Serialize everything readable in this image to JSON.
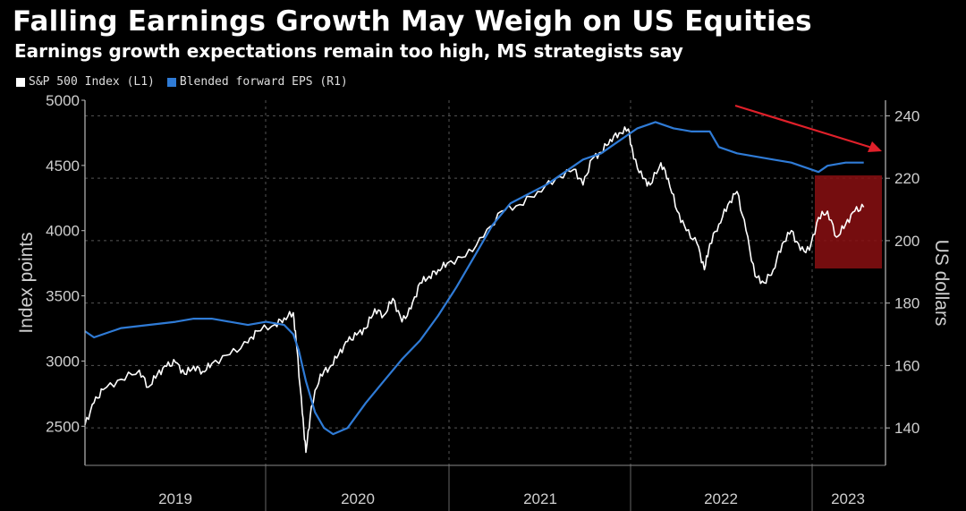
{
  "header": {
    "title": "Falling Earnings Growth May Weigh on US Equities",
    "subtitle": "Earnings growth expectations remain too high, MS strategists say"
  },
  "legend": [
    {
      "label": "S&P 500 Index (L1)",
      "color": "#ffffff"
    },
    {
      "label": "Blended forward EPS (R1)",
      "color": "#2f7bd6"
    }
  ],
  "chart_data": {
    "type": "line",
    "xlabel": "",
    "ylabel_left": "Index points",
    "ylabel_right": "US dollars",
    "x_ticks": [
      "2019",
      "2020",
      "2021",
      "2022",
      "2023"
    ],
    "y_left_ticks": [
      "2500",
      "3000",
      "3500",
      "4000",
      "4500",
      "5000"
    ],
    "y_right_ticks": [
      "140",
      "160",
      "180",
      "200",
      "220",
      "240"
    ],
    "ylim_left": [
      2200,
      5000
    ],
    "ylim_right": [
      128,
      245
    ],
    "xlim": [
      2019.0,
      2023.42
    ],
    "grid": true,
    "legend_position": "top-left",
    "series": [
      {
        "name": "S&P 500 Index (L1)",
        "axis": "left",
        "color": "#ffffff",
        "x": [
          2019.0,
          2019.05,
          2019.1,
          2019.2,
          2019.3,
          2019.35,
          2019.4,
          2019.45,
          2019.5,
          2019.55,
          2019.6,
          2019.65,
          2019.7,
          2019.8,
          2019.9,
          2019.95,
          2020.05,
          2020.1,
          2020.15,
          2020.17,
          2020.2,
          2020.22,
          2020.25,
          2020.3,
          2020.35,
          2020.4,
          2020.45,
          2020.5,
          2020.55,
          2020.6,
          2020.65,
          2020.7,
          2020.75,
          2020.8,
          2020.85,
          2020.9,
          2020.95,
          2021.0,
          2021.1,
          2021.2,
          2021.3,
          2021.4,
          2021.5,
          2021.6,
          2021.7,
          2021.75,
          2021.8,
          2021.85,
          2021.9,
          2021.95,
          2022.0,
          2022.03,
          2022.08,
          2022.12,
          2022.18,
          2022.22,
          2022.27,
          2022.32,
          2022.38,
          2022.42,
          2022.45,
          2022.5,
          2022.55,
          2022.6,
          2022.65,
          2022.7,
          2022.75,
          2022.8,
          2022.85,
          2022.9,
          2022.95,
          2023.0,
          2023.05,
          2023.1,
          2023.15,
          2023.2,
          2023.25,
          2023.3
        ],
        "y": [
          2510,
          2680,
          2780,
          2860,
          2930,
          2800,
          2900,
          2960,
          2990,
          2900,
          2960,
          2920,
          2980,
          3050,
          3140,
          3230,
          3280,
          3330,
          3370,
          3100,
          2600,
          2300,
          2650,
          2900,
          2950,
          3050,
          3150,
          3200,
          3250,
          3400,
          3350,
          3480,
          3300,
          3400,
          3600,
          3650,
          3700,
          3750,
          3800,
          3950,
          4150,
          4200,
          4300,
          4400,
          4470,
          4350,
          4550,
          4600,
          4700,
          4750,
          4780,
          4550,
          4400,
          4350,
          4520,
          4400,
          4150,
          4000,
          3900,
          3700,
          3900,
          4050,
          4200,
          4300,
          4000,
          3650,
          3600,
          3700,
          3900,
          4000,
          3850,
          3850,
          4100,
          4150,
          3950,
          4050,
          4150,
          4180
        ]
      },
      {
        "name": "Blended forward EPS (R1)",
        "axis": "right",
        "color": "#2f7bd6",
        "x": [
          2019.0,
          2019.05,
          2019.1,
          2019.2,
          2019.35,
          2019.5,
          2019.6,
          2019.7,
          2019.8,
          2019.9,
          2020.0,
          2020.1,
          2020.15,
          2020.18,
          2020.22,
          2020.27,
          2020.32,
          2020.37,
          2020.45,
          2020.55,
          2020.65,
          2020.75,
          2020.85,
          2020.95,
          2021.05,
          2021.15,
          2021.25,
          2021.35,
          2021.45,
          2021.55,
          2021.65,
          2021.75,
          2021.85,
          2021.95,
          2022.05,
          2022.15,
          2022.25,
          2022.35,
          2022.45,
          2022.5,
          2022.6,
          2022.7,
          2022.8,
          2022.9,
          2022.95,
          2023.0,
          2023.05,
          2023.1,
          2023.2,
          2023.3
        ],
        "y": [
          171,
          169,
          170,
          172,
          173,
          174,
          175,
          175,
          174,
          173,
          174,
          173,
          170,
          165,
          155,
          145,
          140,
          138,
          140,
          148,
          155,
          162,
          168,
          176,
          185,
          195,
          205,
          212,
          215,
          218,
          222,
          226,
          228,
          232,
          236,
          238,
          236,
          235,
          235,
          230,
          228,
          227,
          226,
          225,
          224,
          223,
          222,
          224,
          225,
          225
        ]
      }
    ],
    "annotations": [
      {
        "type": "arrow",
        "color": "#e0202a"
      },
      {
        "type": "highlight-box",
        "color": "#8a0f12"
      }
    ]
  }
}
